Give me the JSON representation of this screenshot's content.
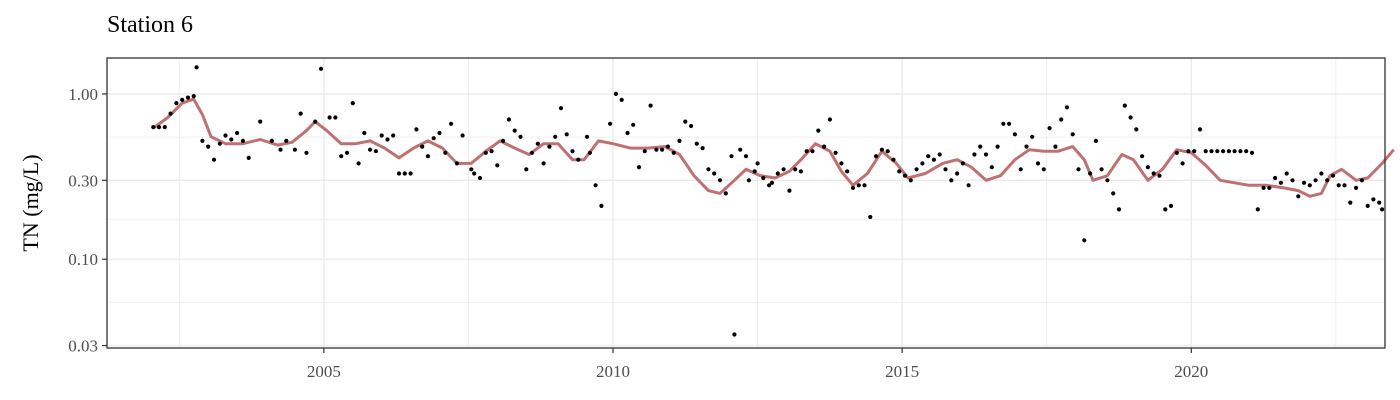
{
  "chart_data": {
    "type": "scatter",
    "title": "Station 6",
    "ylabel": "TN (mg/L)",
    "xlabel": "",
    "y_scale": "log10",
    "xlim": [
      2001.25,
      2023.35
    ],
    "ylim": [
      0.029,
      1.65
    ],
    "x_ticks": [
      2005,
      2010,
      2015,
      2020
    ],
    "x_tick_labels": [
      "2005",
      "2010",
      "2015",
      "2020"
    ],
    "y_ticks": [
      0.03,
      0.1,
      0.3,
      1.0
    ],
    "y_tick_labels": [
      "0.03",
      "0.10",
      "0.30",
      "1.00"
    ],
    "grid": true,
    "colors": {
      "points": "#000000",
      "smooth_line": "#c07070",
      "grid": "#ebebeb",
      "border": "#333333"
    },
    "series": [
      {
        "kind": "points",
        "points": [
          [
            2002.05,
            0.63
          ],
          [
            2002.15,
            0.63
          ],
          [
            2002.25,
            0.63
          ],
          [
            2002.35,
            0.76
          ],
          [
            2002.45,
            0.88
          ],
          [
            2002.55,
            0.92
          ],
          [
            2002.65,
            0.95
          ],
          [
            2002.75,
            0.97
          ],
          [
            2002.8,
            1.45
          ],
          [
            2002.9,
            0.52
          ],
          [
            2003.0,
            0.48
          ],
          [
            2003.1,
            0.4
          ],
          [
            2003.2,
            0.5
          ],
          [
            2003.3,
            0.56
          ],
          [
            2003.4,
            0.53
          ],
          [
            2003.5,
            0.58
          ],
          [
            2003.6,
            0.52
          ],
          [
            2003.7,
            0.41
          ],
          [
            2003.9,
            0.68
          ],
          [
            2004.1,
            0.52
          ],
          [
            2004.25,
            0.46
          ],
          [
            2004.35,
            0.52
          ],
          [
            2004.5,
            0.46
          ],
          [
            2004.6,
            0.76
          ],
          [
            2004.7,
            0.44
          ],
          [
            2004.85,
            0.68
          ],
          [
            2004.95,
            1.42
          ],
          [
            2005.1,
            0.72
          ],
          [
            2005.2,
            0.72
          ],
          [
            2005.3,
            0.42
          ],
          [
            2005.4,
            0.44
          ],
          [
            2005.5,
            0.88
          ],
          [
            2005.6,
            0.38
          ],
          [
            2005.7,
            0.58
          ],
          [
            2005.8,
            0.46
          ],
          [
            2005.9,
            0.45
          ],
          [
            2006.0,
            0.56
          ],
          [
            2006.1,
            0.53
          ],
          [
            2006.2,
            0.56
          ],
          [
            2006.3,
            0.33
          ],
          [
            2006.4,
            0.33
          ],
          [
            2006.5,
            0.33
          ],
          [
            2006.6,
            0.61
          ],
          [
            2006.7,
            0.48
          ],
          [
            2006.8,
            0.42
          ],
          [
            2006.9,
            0.54
          ],
          [
            2007.0,
            0.58
          ],
          [
            2007.1,
            0.44
          ],
          [
            2007.2,
            0.66
          ],
          [
            2007.3,
            0.38
          ],
          [
            2007.4,
            0.56
          ],
          [
            2007.55,
            0.35
          ],
          [
            2007.6,
            0.33
          ],
          [
            2007.7,
            0.31
          ],
          [
            2007.8,
            0.44
          ],
          [
            2007.9,
            0.45
          ],
          [
            2008.0,
            0.37
          ],
          [
            2008.1,
            0.52
          ],
          [
            2008.2,
            0.7
          ],
          [
            2008.3,
            0.6
          ],
          [
            2008.4,
            0.55
          ],
          [
            2008.5,
            0.35
          ],
          [
            2008.6,
            0.44
          ],
          [
            2008.7,
            0.5
          ],
          [
            2008.8,
            0.38
          ],
          [
            2008.9,
            0.48
          ],
          [
            2009.0,
            0.55
          ],
          [
            2009.1,
            0.82
          ],
          [
            2009.2,
            0.57
          ],
          [
            2009.3,
            0.45
          ],
          [
            2009.4,
            0.4
          ],
          [
            2009.55,
            0.55
          ],
          [
            2009.6,
            0.44
          ],
          [
            2009.7,
            0.28
          ],
          [
            2009.8,
            0.21
          ],
          [
            2009.95,
            0.66
          ],
          [
            2010.05,
            1.0
          ],
          [
            2010.15,
            0.92
          ],
          [
            2010.25,
            0.58
          ],
          [
            2010.35,
            0.65
          ],
          [
            2010.45,
            0.36
          ],
          [
            2010.55,
            0.45
          ],
          [
            2010.65,
            0.85
          ],
          [
            2010.75,
            0.46
          ],
          [
            2010.85,
            0.46
          ],
          [
            2010.95,
            0.48
          ],
          [
            2011.05,
            0.44
          ],
          [
            2011.15,
            0.52
          ],
          [
            2011.25,
            0.68
          ],
          [
            2011.35,
            0.64
          ],
          [
            2011.45,
            0.5
          ],
          [
            2011.55,
            0.47
          ],
          [
            2011.65,
            0.35
          ],
          [
            2011.75,
            0.33
          ],
          [
            2011.85,
            0.3
          ],
          [
            2011.95,
            0.25
          ],
          [
            2012.05,
            0.42
          ],
          [
            2012.1,
            0.035
          ],
          [
            2012.2,
            0.46
          ],
          [
            2012.3,
            0.42
          ],
          [
            2012.35,
            0.3
          ],
          [
            2012.45,
            0.34
          ],
          [
            2012.5,
            0.38
          ],
          [
            2012.6,
            0.31
          ],
          [
            2012.7,
            0.28
          ],
          [
            2012.75,
            0.29
          ],
          [
            2012.85,
            0.33
          ],
          [
            2012.95,
            0.35
          ],
          [
            2013.05,
            0.26
          ],
          [
            2013.15,
            0.35
          ],
          [
            2013.25,
            0.34
          ],
          [
            2013.35,
            0.45
          ],
          [
            2013.45,
            0.45
          ],
          [
            2013.55,
            0.6
          ],
          [
            2013.65,
            0.48
          ],
          [
            2013.75,
            0.7
          ],
          [
            2013.85,
            0.44
          ],
          [
            2013.95,
            0.38
          ],
          [
            2014.05,
            0.34
          ],
          [
            2014.15,
            0.27
          ],
          [
            2014.25,
            0.28
          ],
          [
            2014.35,
            0.28
          ],
          [
            2014.45,
            0.18
          ],
          [
            2014.55,
            0.42
          ],
          [
            2014.65,
            0.46
          ],
          [
            2014.75,
            0.45
          ],
          [
            2014.85,
            0.4
          ],
          [
            2014.95,
            0.34
          ],
          [
            2015.05,
            0.32
          ],
          [
            2015.15,
            0.3
          ],
          [
            2015.25,
            0.35
          ],
          [
            2015.35,
            0.38
          ],
          [
            2015.45,
            0.42
          ],
          [
            2015.55,
            0.4
          ],
          [
            2015.65,
            0.43
          ],
          [
            2015.75,
            0.35
          ],
          [
            2015.85,
            0.3
          ],
          [
            2015.95,
            0.33
          ],
          [
            2016.05,
            0.38
          ],
          [
            2016.15,
            0.28
          ],
          [
            2016.25,
            0.43
          ],
          [
            2016.35,
            0.48
          ],
          [
            2016.45,
            0.43
          ],
          [
            2016.55,
            0.36
          ],
          [
            2016.65,
            0.48
          ],
          [
            2016.75,
            0.66
          ],
          [
            2016.85,
            0.66
          ],
          [
            2016.95,
            0.57
          ],
          [
            2017.05,
            0.35
          ],
          [
            2017.15,
            0.48
          ],
          [
            2017.25,
            0.55
          ],
          [
            2017.35,
            0.38
          ],
          [
            2017.45,
            0.35
          ],
          [
            2017.55,
            0.62
          ],
          [
            2017.65,
            0.48
          ],
          [
            2017.75,
            0.7
          ],
          [
            2017.85,
            0.83
          ],
          [
            2017.95,
            0.57
          ],
          [
            2018.05,
            0.35
          ],
          [
            2018.15,
            0.13
          ],
          [
            2018.25,
            0.33
          ],
          [
            2018.35,
            0.52
          ],
          [
            2018.45,
            0.35
          ],
          [
            2018.55,
            0.3
          ],
          [
            2018.65,
            0.25
          ],
          [
            2018.75,
            0.2
          ],
          [
            2018.85,
            0.85
          ],
          [
            2018.95,
            0.72
          ],
          [
            2019.05,
            0.61
          ],
          [
            2019.15,
            0.42
          ],
          [
            2019.25,
            0.36
          ],
          [
            2019.35,
            0.33
          ],
          [
            2019.45,
            0.32
          ],
          [
            2019.55,
            0.2
          ],
          [
            2019.65,
            0.21
          ],
          [
            2019.75,
            0.44
          ],
          [
            2019.85,
            0.38
          ],
          [
            2019.95,
            0.45
          ],
          [
            2020.05,
            0.45
          ],
          [
            2020.15,
            0.61
          ],
          [
            2020.25,
            0.45
          ],
          [
            2020.35,
            0.45
          ],
          [
            2020.45,
            0.45
          ],
          [
            2020.55,
            0.45
          ],
          [
            2020.65,
            0.45
          ],
          [
            2020.75,
            0.45
          ],
          [
            2020.85,
            0.45
          ],
          [
            2020.95,
            0.45
          ],
          [
            2021.05,
            0.44
          ],
          [
            2021.15,
            0.2
          ],
          [
            2021.25,
            0.27
          ],
          [
            2021.35,
            0.27
          ],
          [
            2021.45,
            0.31
          ],
          [
            2021.55,
            0.29
          ],
          [
            2021.65,
            0.33
          ],
          [
            2021.75,
            0.3
          ],
          [
            2021.85,
            0.24
          ],
          [
            2021.95,
            0.29
          ],
          [
            2022.05,
            0.28
          ],
          [
            2022.15,
            0.3
          ],
          [
            2022.25,
            0.33
          ],
          [
            2022.35,
            0.3
          ],
          [
            2022.45,
            0.32
          ],
          [
            2022.55,
            0.28
          ],
          [
            2022.65,
            0.28
          ],
          [
            2022.75,
            0.22
          ],
          [
            2022.85,
            0.27
          ],
          [
            2022.95,
            0.3
          ],
          [
            2023.05,
            0.21
          ],
          [
            2023.15,
            0.23
          ],
          [
            2023.25,
            0.22
          ],
          [
            2023.3,
            0.2
          ]
        ]
      },
      {
        "kind": "smooth_line",
        "points": [
          [
            2002.05,
            0.62
          ],
          [
            2002.3,
            0.72
          ],
          [
            2002.55,
            0.88
          ],
          [
            2002.75,
            0.93
          ],
          [
            2002.9,
            0.75
          ],
          [
            2003.05,
            0.55
          ],
          [
            2003.3,
            0.5
          ],
          [
            2003.6,
            0.5
          ],
          [
            2003.9,
            0.53
          ],
          [
            2004.2,
            0.49
          ],
          [
            2004.45,
            0.51
          ],
          [
            2004.7,
            0.6
          ],
          [
            2004.85,
            0.68
          ],
          [
            2005.05,
            0.6
          ],
          [
            2005.3,
            0.5
          ],
          [
            2005.55,
            0.5
          ],
          [
            2005.8,
            0.52
          ],
          [
            2006.05,
            0.47
          ],
          [
            2006.3,
            0.41
          ],
          [
            2006.55,
            0.47
          ],
          [
            2006.8,
            0.52
          ],
          [
            2007.05,
            0.47
          ],
          [
            2007.3,
            0.38
          ],
          [
            2007.55,
            0.38
          ],
          [
            2007.8,
            0.45
          ],
          [
            2008.05,
            0.52
          ],
          [
            2008.3,
            0.47
          ],
          [
            2008.55,
            0.43
          ],
          [
            2008.8,
            0.5
          ],
          [
            2009.05,
            0.5
          ],
          [
            2009.3,
            0.4
          ],
          [
            2009.5,
            0.4
          ],
          [
            2009.75,
            0.52
          ],
          [
            2010.0,
            0.5
          ],
          [
            2010.3,
            0.47
          ],
          [
            2010.6,
            0.47
          ],
          [
            2010.9,
            0.48
          ],
          [
            2011.15,
            0.43
          ],
          [
            2011.4,
            0.32
          ],
          [
            2011.65,
            0.26
          ],
          [
            2011.85,
            0.25
          ],
          [
            2012.1,
            0.3
          ],
          [
            2012.3,
            0.35
          ],
          [
            2012.55,
            0.32
          ],
          [
            2012.8,
            0.31
          ],
          [
            2013.05,
            0.34
          ],
          [
            2013.25,
            0.4
          ],
          [
            2013.5,
            0.5
          ],
          [
            2013.75,
            0.45
          ],
          [
            2013.95,
            0.34
          ],
          [
            2014.15,
            0.28
          ],
          [
            2014.4,
            0.33
          ],
          [
            2014.65,
            0.45
          ],
          [
            2014.9,
            0.38
          ],
          [
            2015.1,
            0.31
          ],
          [
            2015.4,
            0.33
          ],
          [
            2015.7,
            0.38
          ],
          [
            2015.95,
            0.4
          ],
          [
            2016.2,
            0.36
          ],
          [
            2016.45,
            0.3
          ],
          [
            2016.7,
            0.32
          ],
          [
            2016.95,
            0.4
          ],
          [
            2017.2,
            0.46
          ],
          [
            2017.45,
            0.45
          ],
          [
            2017.7,
            0.45
          ],
          [
            2017.95,
            0.48
          ],
          [
            2018.15,
            0.4
          ],
          [
            2018.3,
            0.3
          ],
          [
            2018.55,
            0.32
          ],
          [
            2018.8,
            0.43
          ],
          [
            2019.0,
            0.4
          ],
          [
            2019.25,
            0.3
          ],
          [
            2019.5,
            0.35
          ],
          [
            2019.75,
            0.46
          ],
          [
            2020.0,
            0.44
          ],
          [
            2020.25,
            0.37
          ],
          [
            2020.5,
            0.3
          ],
          [
            2020.75,
            0.29
          ],
          [
            2021.0,
            0.28
          ],
          [
            2021.3,
            0.28
          ],
          [
            2021.6,
            0.27
          ],
          [
            2021.85,
            0.26
          ],
          [
            2022.05,
            0.24
          ],
          [
            2022.25,
            0.25
          ],
          [
            2022.4,
            0.32
          ],
          [
            2022.6,
            0.35
          ],
          [
            2022.85,
            0.3
          ],
          [
            2023.05,
            0.31
          ],
          [
            2023.3,
            0.38
          ],
          [
            2023.5,
            0.46
          ]
        ]
      }
    ]
  }
}
